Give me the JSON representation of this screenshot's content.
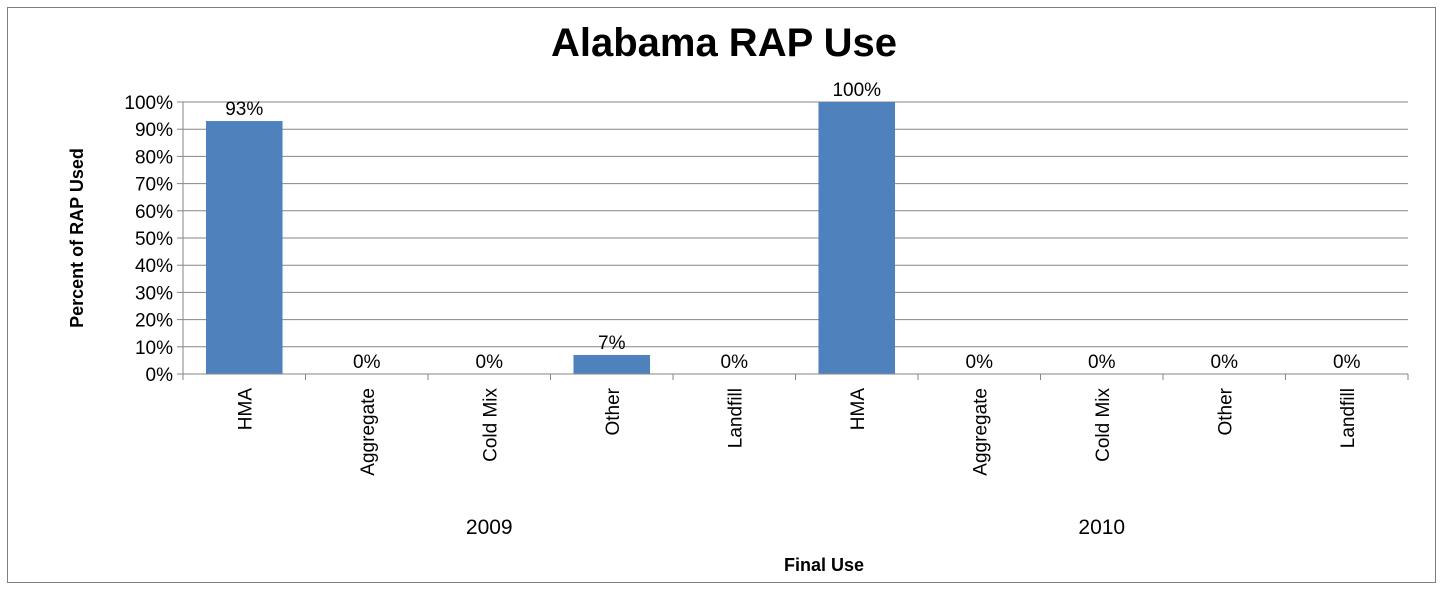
{
  "chart_data": {
    "type": "bar",
    "title": "Alabama RAP Use",
    "xlabel": "Final Use",
    "ylabel": "Percent of RAP Used",
    "ylim": [
      0,
      100
    ],
    "yticks": [
      "0%",
      "10%",
      "20%",
      "30%",
      "40%",
      "50%",
      "60%",
      "70%",
      "80%",
      "90%",
      "100%"
    ],
    "grid": true,
    "legend": "none",
    "bar_color": "#4f81bd",
    "groups": [
      {
        "name": "2009",
        "categories": [
          "HMA",
          "Aggregate",
          "Cold Mix",
          "Other",
          "Landfill"
        ],
        "values": [
          93,
          0,
          0,
          7,
          0
        ],
        "labels": [
          "93%",
          "0%",
          "0%",
          "7%",
          "0%"
        ]
      },
      {
        "name": "2010",
        "categories": [
          "HMA",
          "Aggregate",
          "Cold Mix",
          "Other",
          "Landfill"
        ],
        "values": [
          100,
          0,
          0,
          0,
          0
        ],
        "labels": [
          "100%",
          "0%",
          "0%",
          "0%",
          "0%"
        ]
      }
    ]
  }
}
